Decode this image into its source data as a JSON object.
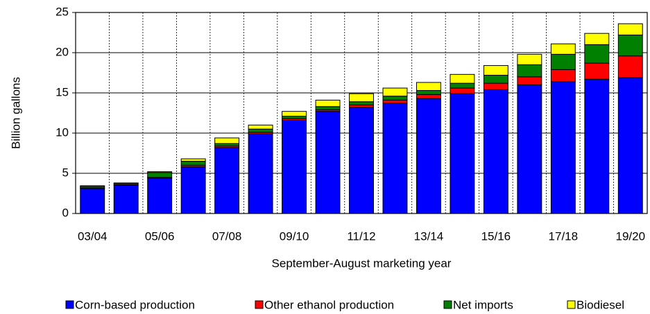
{
  "chart_data": {
    "type": "stacked_bar",
    "y_label": "Billion gallons",
    "x_label": "September-August marketing year",
    "categories": [
      "03/04",
      null,
      "05/06",
      null,
      "07/08",
      null,
      "09/10",
      null,
      "11/12",
      null,
      "13/14",
      null,
      "15/16",
      null,
      "17/18",
      null,
      "19/20"
    ],
    "series": [
      {
        "name": "Corn-based production",
        "color": "#0000ff",
        "values": [
          3.1,
          3.5,
          4.4,
          5.8,
          8.2,
          9.9,
          11.6,
          12.7,
          13.2,
          13.7,
          14.3,
          14.9,
          15.4,
          16.0,
          16.4,
          16.7,
          16.9
        ]
      },
      {
        "name": "Other ethanol production",
        "color": "#ff0000",
        "values": [
          0.1,
          0.1,
          0.1,
          0.2,
          0.2,
          0.2,
          0.2,
          0.2,
          0.3,
          0.4,
          0.5,
          0.7,
          0.8,
          1.0,
          1.5,
          2.0,
          2.7
        ]
      },
      {
        "name": "Net imports",
        "color": "#008000",
        "values": [
          0.2,
          0.15,
          0.6,
          0.5,
          0.3,
          0.4,
          0.3,
          0.4,
          0.4,
          0.5,
          0.5,
          0.6,
          1.0,
          1.5,
          1.9,
          2.3,
          2.6
        ]
      },
      {
        "name": "Biodiesel",
        "color": "#ffff00",
        "values": [
          0.05,
          0.05,
          0.1,
          0.3,
          0.7,
          0.5,
          0.6,
          0.8,
          1.0,
          1.0,
          1.0,
          1.1,
          1.2,
          1.3,
          1.3,
          1.4,
          1.4
        ]
      }
    ],
    "ylim": [
      0,
      25
    ],
    "yticks": [
      0,
      5,
      10,
      15,
      20,
      25
    ],
    "grid": true
  }
}
